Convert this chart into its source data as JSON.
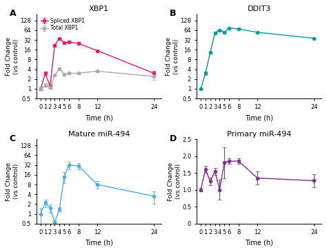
{
  "timepoints": [
    0,
    1,
    2,
    3,
    4,
    5,
    6,
    8,
    12,
    24
  ],
  "A": {
    "title": "XBP1",
    "ylabel": "Fold Change\n(vs control)",
    "xlabel": "Time (h)",
    "spliced": [
      1.0,
      3.0,
      1.2,
      22.0,
      36.0,
      26.0,
      28.0,
      25.0,
      15.0,
      3.0
    ],
    "spliced_err": [
      0.1,
      0.4,
      0.2,
      2.0,
      2.0,
      2.0,
      2.0,
      2.0,
      1.5,
      0.5
    ],
    "total": [
      1.0,
      1.3,
      1.1,
      2.6,
      4.2,
      2.8,
      3.0,
      3.0,
      3.5,
      2.4
    ],
    "total_err": [
      0.08,
      0.15,
      0.12,
      0.25,
      0.35,
      0.25,
      0.25,
      0.2,
      0.3,
      0.5
    ],
    "spliced_color": "#E8185E",
    "total_color": "#AAAAAA",
    "ylim_log": [
      0.5,
      200
    ],
    "yticks_log": [
      0.5,
      1,
      2,
      4,
      8,
      16,
      32,
      64,
      128
    ],
    "ytick_labels_log": [
      "0.5",
      "1",
      "2",
      "4",
      "8",
      "16",
      "32",
      "64",
      "128"
    ],
    "legend": [
      "Spliced XBP1",
      "Total XBP1"
    ]
  },
  "B": {
    "title": "DDIT3",
    "ylabel": "Fold Change\n(vs control)",
    "xlabel": "Time (h)",
    "values": [
      1.0,
      3.0,
      13.0,
      52.0,
      65.0,
      55.0,
      75.0,
      70.0,
      55.0,
      36.0
    ],
    "errors": [
      0.05,
      0.4,
      1.0,
      2.5,
      2.5,
      3.0,
      3.0,
      3.0,
      2.5,
      2.0
    ],
    "color": "#009999",
    "ylim_log": [
      0.5,
      200
    ],
    "yticks_log": [
      0.5,
      1,
      2,
      4,
      8,
      16,
      32,
      64,
      128
    ],
    "ytick_labels_log": [
      "0.5",
      "1",
      "2",
      "4",
      "8",
      "16",
      "32",
      "64",
      "128"
    ]
  },
  "C": {
    "title": "Mature miR-494",
    "ylabel": "Fold Change\n(vs control)",
    "xlabel": "Time (h)",
    "values": [
      1.0,
      2.2,
      1.5,
      0.55,
      1.4,
      14.0,
      32.0,
      30.0,
      8.0,
      3.5
    ],
    "errors": [
      0.5,
      0.6,
      0.4,
      0.05,
      0.2,
      5.0,
      9.0,
      7.0,
      2.0,
      1.5
    ],
    "color": "#4DAAEE",
    "ylim_log": [
      0.5,
      200
    ],
    "yticks_log": [
      0.5,
      1,
      2,
      4,
      8,
      16,
      32,
      64,
      128
    ],
    "ytick_labels_log": [
      "0.5",
      "1",
      "2",
      "4",
      "8",
      "16",
      "32",
      "64",
      "128"
    ]
  },
  "D": {
    "title": "Primary miR-494",
    "ylabel": "Fold Change\n(vs control)",
    "xlabel": "Time (h)",
    "values": [
      1.0,
      1.6,
      1.25,
      1.55,
      1.0,
      1.8,
      1.85,
      1.85,
      1.35,
      1.27
    ],
    "errors": [
      0.05,
      0.1,
      0.12,
      0.1,
      0.3,
      0.45,
      0.08,
      0.08,
      0.2,
      0.2
    ],
    "color": "#7B2D8B",
    "ylim": [
      0.0,
      2.5
    ],
    "yticks": [
      0.0,
      0.5,
      1.0,
      1.5,
      2.0,
      2.5
    ],
    "ytick_labels": [
      "0",
      "0.5",
      "1.0",
      "1.5",
      "2.0",
      "2.5"
    ]
  },
  "background": "#FFFFFF"
}
